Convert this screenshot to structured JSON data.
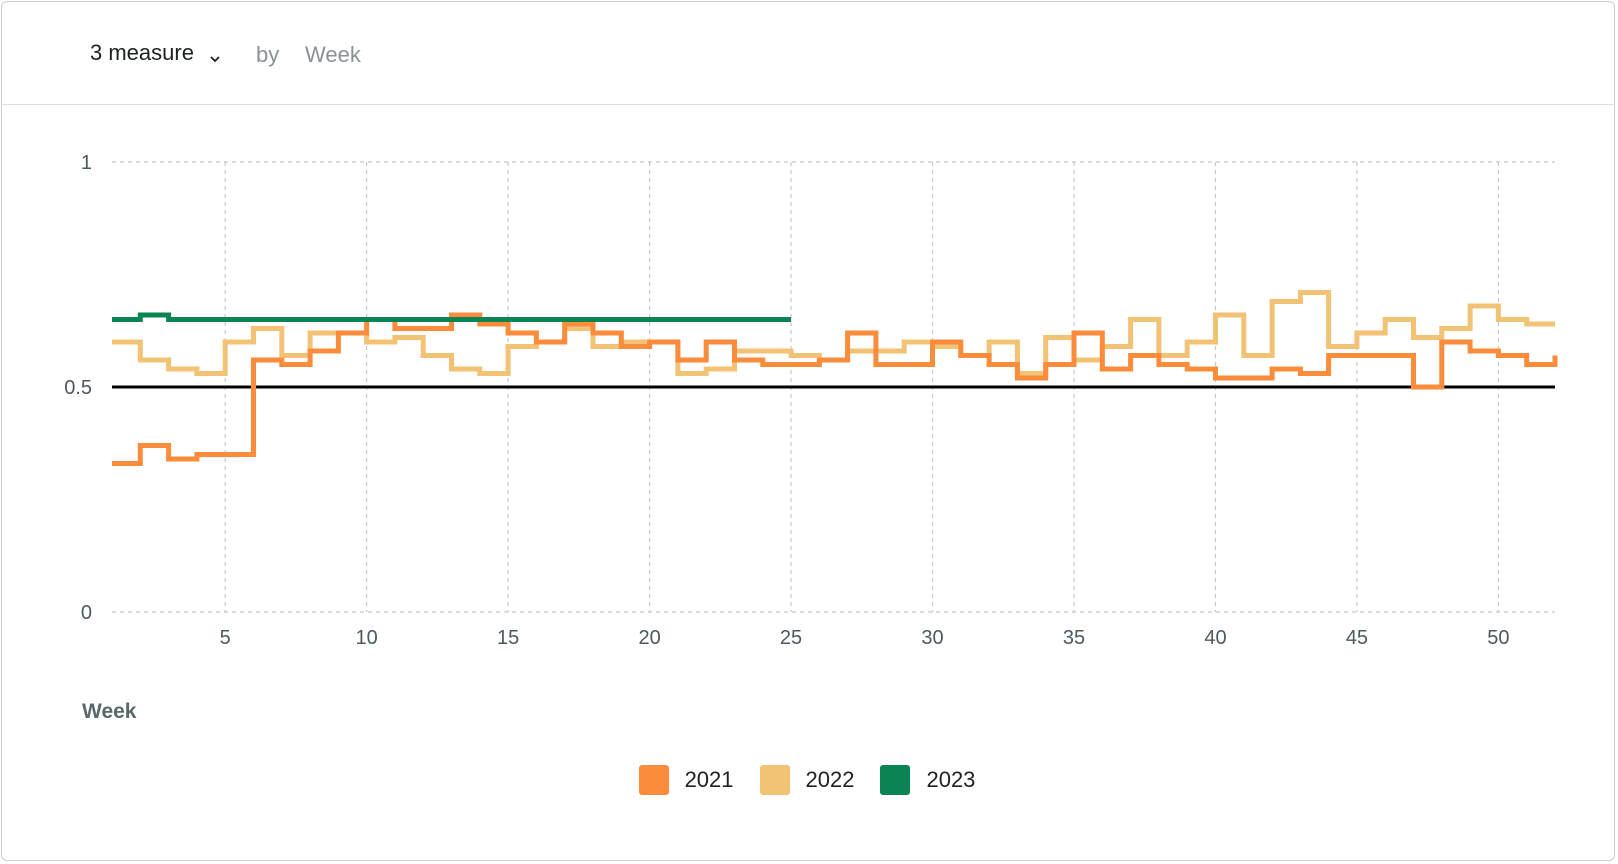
{
  "header": {
    "measure_label": "3 measure",
    "by_label": "by",
    "dimension_label": "Week",
    "dropdown_icon": "chevron-down-icon"
  },
  "chart_data": {
    "type": "line",
    "step": true,
    "xlabel": "Week",
    "ylabel": "",
    "xlim": [
      1,
      52
    ],
    "ylim": [
      0,
      1
    ],
    "x_ticks": [
      5,
      10,
      15,
      20,
      25,
      30,
      35,
      40,
      45,
      50
    ],
    "y_ticks": [
      0,
      0.5,
      1
    ],
    "y_tick_labels": [
      "0",
      "0.5",
      "1"
    ],
    "grid": true,
    "legend_position": "bottom",
    "reference_line": {
      "value": 0.5,
      "color": "#000000"
    },
    "series": [
      {
        "name": "2021",
        "color": "#fb8c3c",
        "values": [
          0.33,
          0.37,
          0.34,
          0.35,
          0.35,
          0.56,
          0.55,
          0.58,
          0.62,
          0.65,
          0.63,
          0.63,
          0.66,
          0.64,
          0.62,
          0.6,
          0.64,
          0.62,
          0.59,
          0.6,
          0.56,
          0.6,
          0.56,
          0.55,
          0.55,
          0.56,
          0.62,
          0.55,
          0.55,
          0.6,
          0.57,
          0.55,
          0.52,
          0.55,
          0.62,
          0.54,
          0.57,
          0.55,
          0.54,
          0.52,
          0.52,
          0.54,
          0.53,
          0.57,
          0.57,
          0.57,
          0.5,
          0.6,
          0.58,
          0.57,
          0.55,
          0.57
        ]
      },
      {
        "name": "2022",
        "color": "#f2c375",
        "values": [
          0.6,
          0.56,
          0.54,
          0.53,
          0.6,
          0.63,
          0.57,
          0.62,
          0.62,
          0.6,
          0.61,
          0.57,
          0.54,
          0.53,
          0.59,
          0.6,
          0.63,
          0.59,
          0.6,
          0.6,
          0.53,
          0.54,
          0.58,
          0.58,
          0.57,
          0.56,
          0.58,
          0.58,
          0.6,
          0.59,
          0.57,
          0.6,
          0.53,
          0.61,
          0.56,
          0.59,
          0.65,
          0.57,
          0.6,
          0.66,
          0.57,
          0.69,
          0.71,
          0.59,
          0.62,
          0.65,
          0.61,
          0.63,
          0.68,
          0.65,
          0.64,
          0.64
        ]
      },
      {
        "name": "2023",
        "color": "#0a8452",
        "values": [
          0.65,
          0.66,
          0.65,
          0.65,
          0.65,
          0.65,
          0.65,
          0.65,
          0.65,
          0.65,
          0.65,
          0.65,
          0.65,
          0.65,
          0.65,
          0.65,
          0.65,
          0.65,
          0.65,
          0.65,
          0.65,
          0.65,
          0.65,
          0.65
        ]
      }
    ]
  }
}
